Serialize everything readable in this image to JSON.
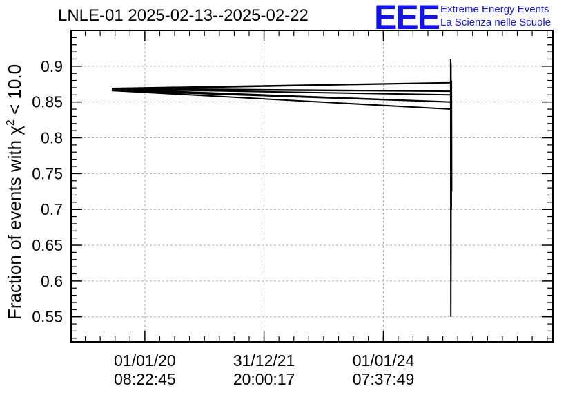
{
  "header": {
    "title": "LNLE-01 2025-02-13--2025-02-22",
    "logo_letters": "EEE",
    "logo_line1": "Extreme Energy Events",
    "logo_line2": "La Scienza nelle Scuole"
  },
  "chart_data": {
    "type": "line",
    "title": "LNLE-01 2025-02-13--2025-02-22",
    "ylabel_prefix": "Fraction of events with ",
    "ylabel_symbol": "χ",
    "ylabel_sup": "2",
    "ylabel_suffix": " < 10.0",
    "xlabel": "",
    "ylim": [
      0.515,
      0.95
    ],
    "xlim": [
      "2018-10-06",
      "2026-11-04"
    ],
    "x_ticks": [
      {
        "x": "2020-01-01",
        "date": "01/01/20",
        "time": "08:22:45"
      },
      {
        "x": "2021-12-31",
        "date": "31/12/21",
        "time": "20:00:17"
      },
      {
        "x": "2024-01-01",
        "date": "01/01/24",
        "time": "07:37:49"
      }
    ],
    "y_ticks": [
      0.55,
      0.6,
      0.65,
      0.7,
      0.75,
      0.8,
      0.85,
      0.9
    ],
    "y_tick_labels": [
      "0.55",
      "0.6",
      "0.65",
      "0.7",
      "0.75",
      "0.8",
      "0.85",
      "0.9"
    ],
    "grid": true,
    "color": "#000000",
    "series": [
      {
        "points": [
          {
            "x": "2025-02-13",
            "y": 0.86
          },
          {
            "x": "2019-06-12",
            "y": 0.868
          },
          {
            "x": "2025-02-14",
            "y": 0.865
          },
          {
            "x": "2019-06-12",
            "y": 0.869
          },
          {
            "x": "2025-02-15",
            "y": 0.877
          },
          {
            "x": "2019-06-14",
            "y": 0.868
          },
          {
            "x": "2025-02-15",
            "y": 0.85
          },
          {
            "x": "2019-06-12",
            "y": 0.866
          },
          {
            "x": "2025-02-16",
            "y": 0.84
          },
          {
            "x": "2025-02-16",
            "y": 0.91
          },
          {
            "x": "2025-02-17",
            "y": 0.55
          },
          {
            "x": "2025-02-18",
            "y": 0.905
          },
          {
            "x": "2025-02-18",
            "y": 0.6
          },
          {
            "x": "2025-02-19",
            "y": 0.86
          },
          {
            "x": "2025-02-20",
            "y": 0.7
          },
          {
            "x": "2025-02-21",
            "y": 0.88
          },
          {
            "x": "2025-02-22",
            "y": 0.725
          }
        ]
      }
    ]
  }
}
